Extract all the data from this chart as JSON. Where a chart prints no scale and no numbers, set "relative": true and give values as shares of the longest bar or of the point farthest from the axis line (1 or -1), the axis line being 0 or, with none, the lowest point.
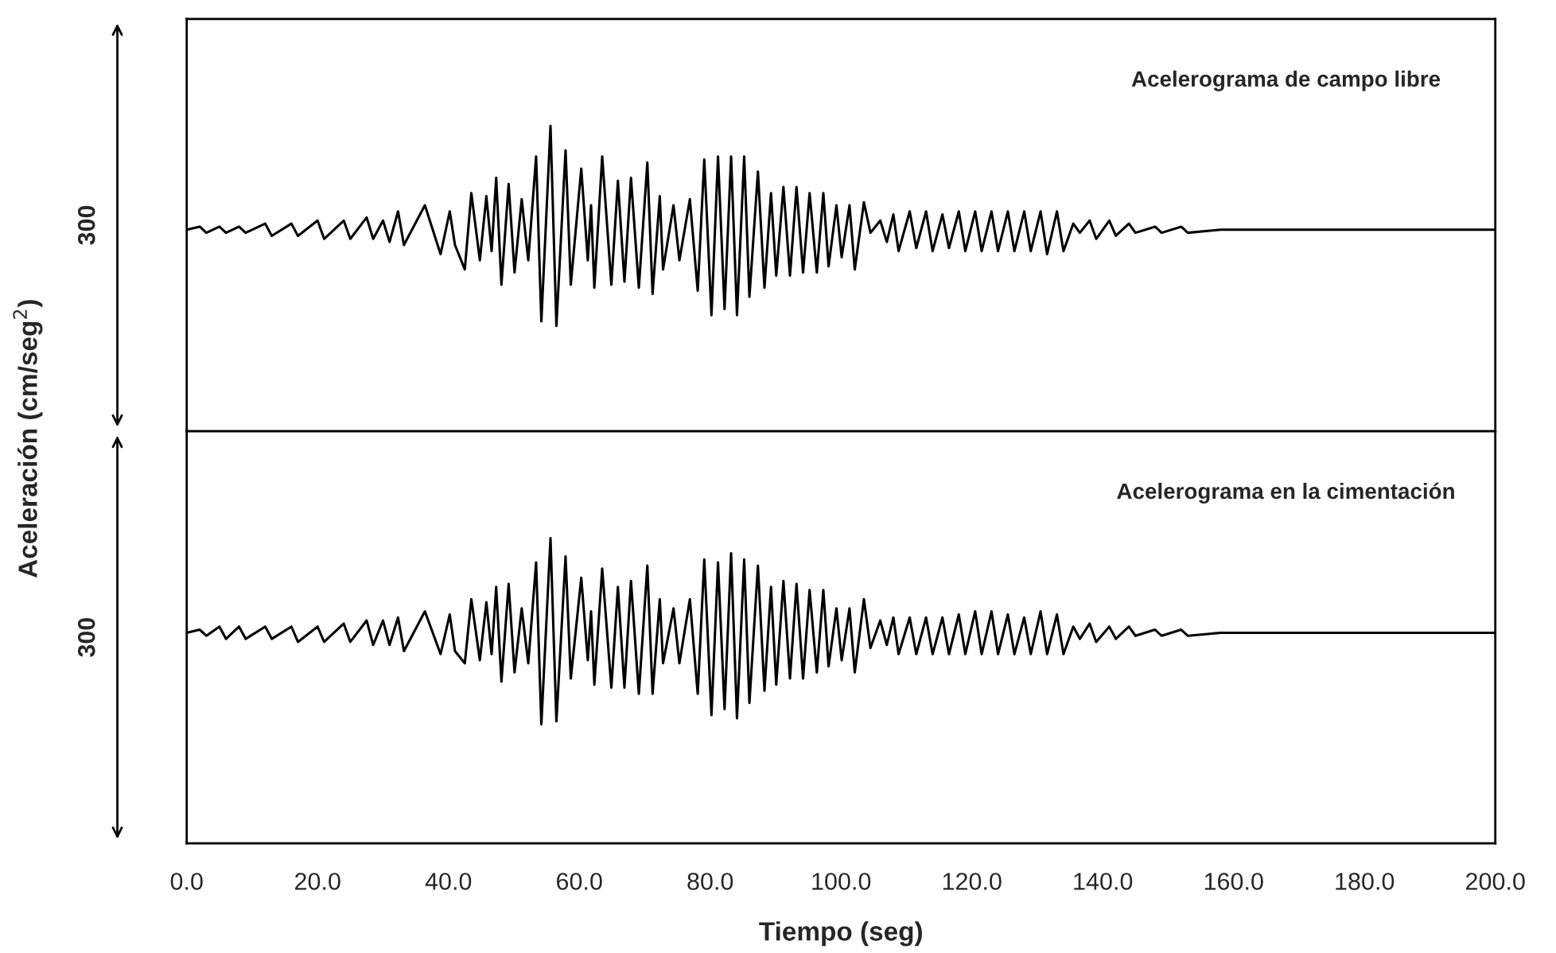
{
  "chart_data": [
    {
      "type": "line",
      "relative": true,
      "ylabel": "Aceleración (cm/seg$^{2}$)",
      "xlim": [
        0,
        200
      ],
      "tick_labels": false,
      "annotations": [
        "Acelerograma de campo libre",
        "300"
      ],
      "series": [
        {
          "color": "#000000",
          "x": [
            0,
            2,
            3,
            5,
            6,
            8,
            9,
            12,
            13,
            16,
            17,
            20,
            21,
            24,
            25,
            27.5,
            28.5,
            30,
            31,
            32.3,
            33.2,
            36.4,
            38.8,
            40.2,
            41,
            42.5,
            43.5,
            44.8,
            45.8,
            46.6,
            47.3,
            48.1,
            49.2,
            50.1,
            51.2,
            52.2,
            53.4,
            54.2,
            55.6,
            56.5,
            57.9,
            58.7,
            60.3,
            61.3,
            61.8,
            62.3,
            63.5,
            64.9,
            65.9,
            66.9,
            67.9,
            69.1,
            70.4,
            71.2,
            72.3,
            72.8,
            74.4,
            75.3,
            76.9,
            78.1,
            79.1,
            80.2,
            81.2,
            82.2,
            83.2,
            84.1,
            85.2,
            86.0,
            87.3,
            88.3,
            89.3,
            90.1,
            91.2,
            92.2,
            93.2,
            94.2,
            95.2,
            96.3,
            97.3,
            98.1,
            99.3,
            100.1,
            101.3,
            102.1,
            103.5,
            104.5,
            106,
            107,
            108,
            108.8,
            110.5,
            111.5,
            113,
            114,
            115.5,
            116.5,
            118,
            119,
            120.5,
            121.5,
            123,
            124,
            125.5,
            126.5,
            128,
            129,
            130.5,
            131.5,
            133,
            134,
            135.5,
            136.5,
            138,
            139,
            141,
            142,
            144,
            145,
            148,
            149,
            152,
            153,
            158,
            200
          ],
          "values": [
            0.66,
            0.67,
            0.65,
            0.67,
            0.65,
            0.67,
            0.65,
            0.68,
            0.64,
            0.68,
            0.64,
            0.69,
            0.63,
            0.69,
            0.63,
            0.7,
            0.63,
            0.69,
            0.62,
            0.72,
            0.61,
            0.74,
            0.58,
            0.72,
            0.61,
            0.53,
            0.78,
            0.56,
            0.77,
            0.59,
            0.83,
            0.48,
            0.81,
            0.52,
            0.76,
            0.56,
            0.9,
            0.36,
            1.0,
            0.345,
            0.92,
            0.48,
            0.86,
            0.56,
            0.74,
            0.47,
            0.9,
            0.48,
            0.82,
            0.49,
            0.83,
            0.47,
            0.88,
            0.45,
            0.77,
            0.53,
            0.74,
            0.56,
            0.76,
            0.46,
            0.89,
            0.38,
            0.9,
            0.4,
            0.9,
            0.38,
            0.9,
            0.44,
            0.85,
            0.47,
            0.78,
            0.51,
            0.8,
            0.51,
            0.8,
            0.52,
            0.78,
            0.52,
            0.78,
            0.54,
            0.74,
            0.57,
            0.74,
            0.53,
            0.75,
            0.65,
            0.69,
            0.62,
            0.71,
            0.59,
            0.72,
            0.6,
            0.72,
            0.59,
            0.71,
            0.6,
            0.72,
            0.59,
            0.72,
            0.59,
            0.72,
            0.59,
            0.72,
            0.59,
            0.72,
            0.59,
            0.72,
            0.58,
            0.72,
            0.59,
            0.68,
            0.65,
            0.69,
            0.63,
            0.69,
            0.64,
            0.68,
            0.65,
            0.67,
            0.65,
            0.67,
            0.65,
            0.66,
            0.66
          ]
        }
      ]
    },
    {
      "type": "line",
      "relative": true,
      "xlabel": "Tiempo (seg)",
      "xlim": [
        0,
        200
      ],
      "tick_labels": "x",
      "xticks": [
        {
          "value": 0,
          "label": "0.0"
        },
        {
          "value": 20,
          "label": "20.0"
        },
        {
          "value": 40,
          "label": "40.0"
        },
        {
          "value": 60,
          "label": "60.0"
        },
        {
          "value": 80,
          "label": "80.0"
        },
        {
          "value": 100,
          "label": "100.0"
        },
        {
          "value": 120,
          "label": "120.0"
        },
        {
          "value": 140,
          "label": "140.0"
        },
        {
          "value": 160,
          "label": "160.0"
        },
        {
          "value": 180,
          "label": "180.0"
        },
        {
          "value": 200,
          "label": "200.0"
        }
      ],
      "annotations": [
        "Acelerograma en la cimentación",
        "300"
      ],
      "series": [
        {
          "color": "#000000",
          "x": [
            0,
            2,
            3,
            5,
            6,
            8,
            9,
            12,
            13,
            16,
            17,
            20,
            21,
            24,
            25,
            27.5,
            28.5,
            30,
            31,
            32.3,
            33.2,
            36.4,
            38.8,
            40.2,
            41,
            42.5,
            43.5,
            44.8,
            45.8,
            46.6,
            47.3,
            48.1,
            49.2,
            50.1,
            51.2,
            52.2,
            53.4,
            54.2,
            55.6,
            56.5,
            57.9,
            58.7,
            60.3,
            61.3,
            61.8,
            62.3,
            63.5,
            64.9,
            65.9,
            66.9,
            67.9,
            69.1,
            70.4,
            71.2,
            72.3,
            72.8,
            74.4,
            75.3,
            76.9,
            78.1,
            79.1,
            80.2,
            81.2,
            82.2,
            83.2,
            84.1,
            85.2,
            86.0,
            87.3,
            88.3,
            89.3,
            90.1,
            91.2,
            92.2,
            93.2,
            94.2,
            95.2,
            96.3,
            97.3,
            98.1,
            99.3,
            100.1,
            101.3,
            102.1,
            103.5,
            104.5,
            106,
            107,
            108,
            108.8,
            110.5,
            111.5,
            113,
            114,
            115.5,
            116.5,
            118,
            119,
            120.5,
            121.5,
            123,
            124,
            125.5,
            126.5,
            128,
            129,
            130.5,
            131.5,
            133,
            134,
            135.5,
            136.5,
            138,
            139,
            141,
            142,
            144,
            145,
            148,
            149,
            152,
            153,
            158,
            200
          ],
          "values": [
            0.69,
            0.7,
            0.68,
            0.71,
            0.67,
            0.71,
            0.67,
            0.71,
            0.67,
            0.71,
            0.66,
            0.71,
            0.66,
            0.72,
            0.66,
            0.73,
            0.65,
            0.73,
            0.65,
            0.74,
            0.63,
            0.76,
            0.62,
            0.75,
            0.63,
            0.59,
            0.8,
            0.6,
            0.79,
            0.62,
            0.84,
            0.53,
            0.85,
            0.56,
            0.77,
            0.59,
            0.92,
            0.39,
            1.0,
            0.4,
            0.94,
            0.54,
            0.87,
            0.6,
            0.76,
            0.52,
            0.9,
            0.51,
            0.84,
            0.51,
            0.86,
            0.49,
            0.91,
            0.49,
            0.8,
            0.59,
            0.77,
            0.59,
            0.8,
            0.49,
            0.93,
            0.42,
            0.92,
            0.44,
            0.95,
            0.41,
            0.93,
            0.46,
            0.91,
            0.5,
            0.84,
            0.52,
            0.86,
            0.54,
            0.85,
            0.54,
            0.83,
            0.56,
            0.83,
            0.58,
            0.77,
            0.6,
            0.77,
            0.56,
            0.8,
            0.64,
            0.73,
            0.65,
            0.74,
            0.62,
            0.74,
            0.62,
            0.74,
            0.62,
            0.74,
            0.62,
            0.75,
            0.62,
            0.76,
            0.62,
            0.76,
            0.62,
            0.75,
            0.62,
            0.74,
            0.62,
            0.76,
            0.62,
            0.75,
            0.62,
            0.71,
            0.67,
            0.72,
            0.66,
            0.71,
            0.67,
            0.71,
            0.68,
            0.7,
            0.68,
            0.7,
            0.68,
            0.69,
            0.69
          ]
        }
      ]
    }
  ]
}
